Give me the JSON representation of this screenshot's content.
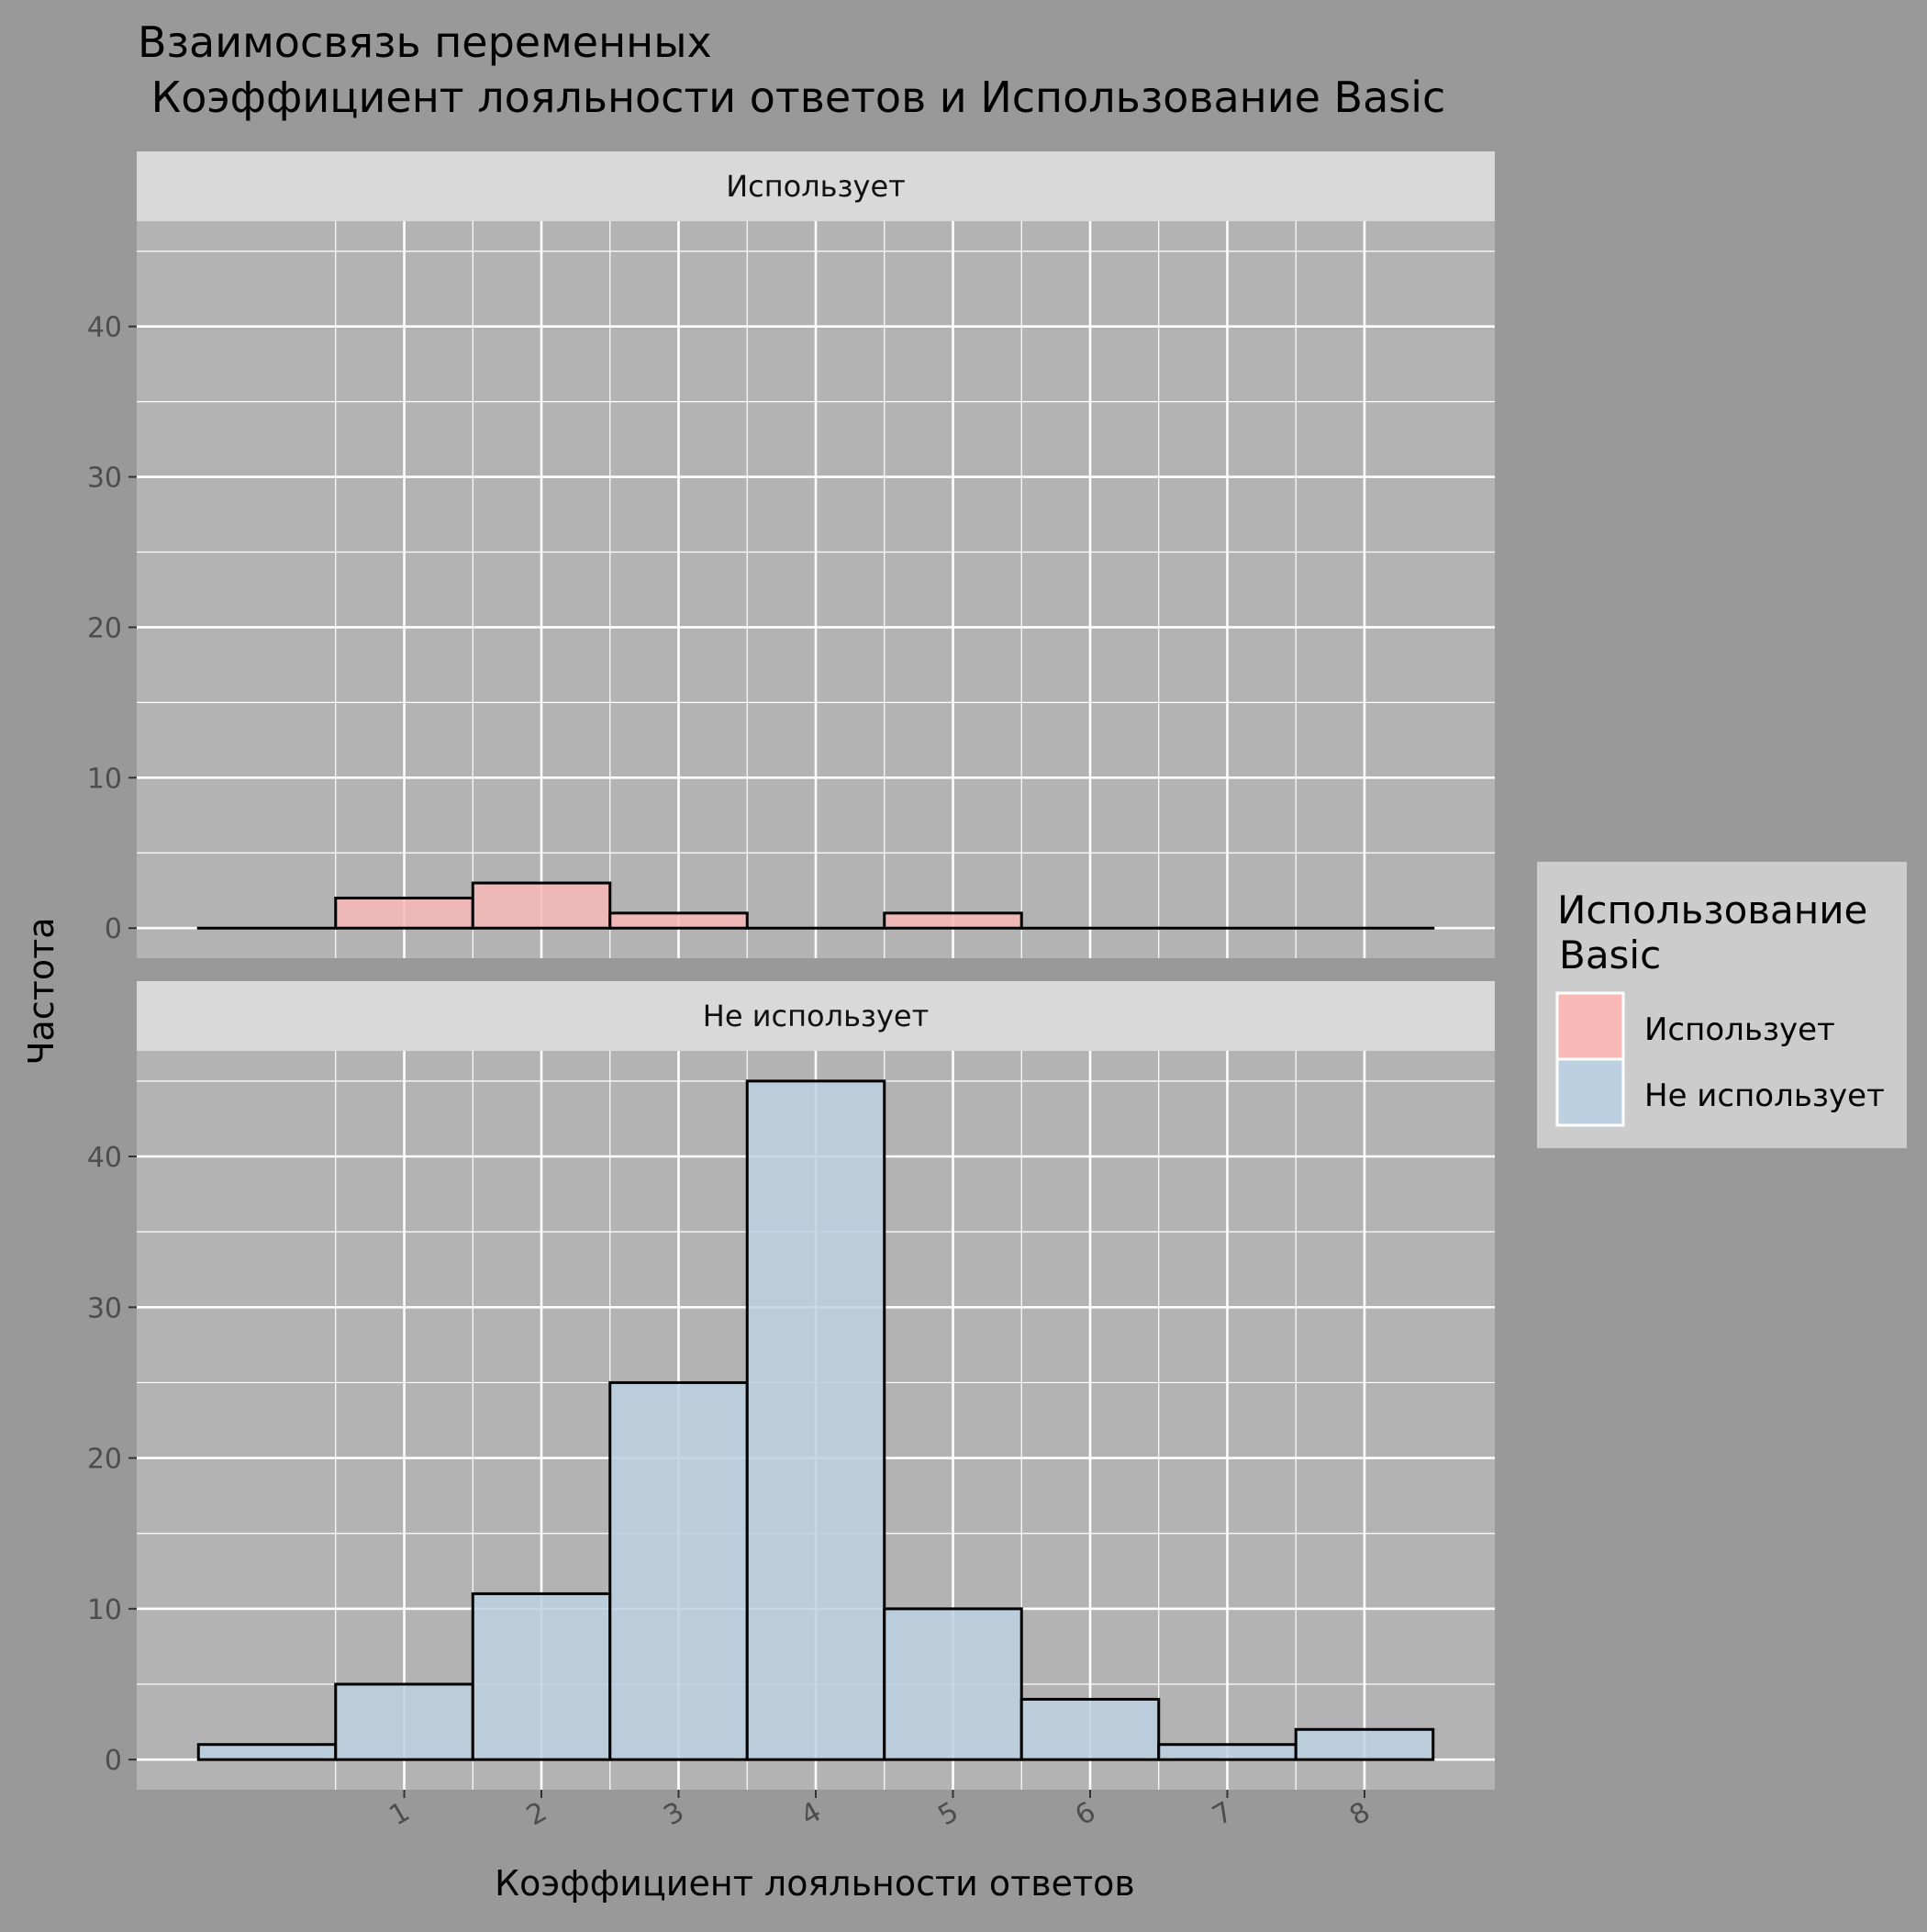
{
  "chart_data": {
    "type": "bar",
    "title_line1": "Взаимосвязь переменных",
    "title_line2": " Коэффициент лояльности ответов и Использование Basic",
    "xlabel": "Коэффициент лояльности ответов",
    "ylabel": "Частота",
    "x_bin_centers": [
      0,
      1,
      2,
      3,
      4,
      5,
      6,
      7,
      8
    ],
    "x_tick_labels": [
      "1",
      "2",
      "3",
      "4",
      "5",
      "6",
      "7",
      "8"
    ],
    "x_tick_values": [
      1,
      2,
      3,
      4,
      5,
      6,
      7,
      8
    ],
    "y_tick_values": [
      0,
      10,
      20,
      30,
      40
    ],
    "ylim": [
      -2,
      47
    ],
    "xlim": [
      -0.95,
      8.95
    ],
    "grid": true,
    "legend": {
      "title_line1": "Использование",
      "title_line2": "Basic",
      "placement": "right",
      "entries": [
        "Использует",
        "Не использует"
      ]
    },
    "panels": [
      {
        "strip_label": "Использует",
        "fill": "#f8b9b6",
        "values": [
          0,
          2,
          3,
          1,
          0,
          1,
          0,
          0,
          0
        ]
      },
      {
        "strip_label": "Не использует",
        "fill": "#bcd0e2",
        "values": [
          1,
          5,
          11,
          25,
          45,
          10,
          4,
          1,
          2
        ]
      }
    ]
  },
  "colors": {
    "background": "#999999",
    "panel": "#b3b3b3",
    "strip": "#d9d9d9",
    "legend_box": "#cccccc",
    "grid": "#ffffff",
    "bar_outline": "#000000"
  }
}
